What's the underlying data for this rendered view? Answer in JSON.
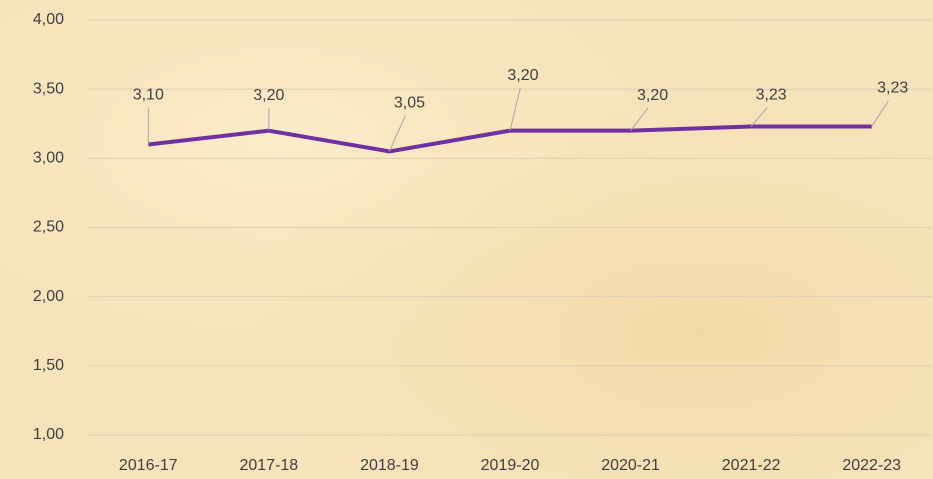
{
  "chart_data": {
    "type": "line",
    "categories": [
      "2016-17",
      "2017-18",
      "2018-19",
      "2019-20",
      "2020-21",
      "2021-22",
      "2022-23"
    ],
    "series": [
      {
        "color": "#7030a0",
        "values": [
          3.1,
          3.2,
          3.05,
          3.2,
          3.2,
          3.23,
          3.23
        ],
        "value_labels": [
          "3,10",
          "3,20",
          "3,05",
          "3,20",
          "3,20",
          "3,23",
          "3,23"
        ]
      }
    ],
    "ylim": [
      1,
      4
    ],
    "yticks": [
      {
        "value": 1,
        "label": "1,00"
      },
      {
        "value": 1.5,
        "label": "1,50"
      },
      {
        "value": 2,
        "label": "2,00"
      },
      {
        "value": 2.5,
        "label": "2,50"
      },
      {
        "value": 3,
        "label": "3,00"
      },
      {
        "value": 3.5,
        "label": "3,50"
      },
      {
        "value": 4,
        "label": "4,00"
      }
    ],
    "grid": true
  }
}
